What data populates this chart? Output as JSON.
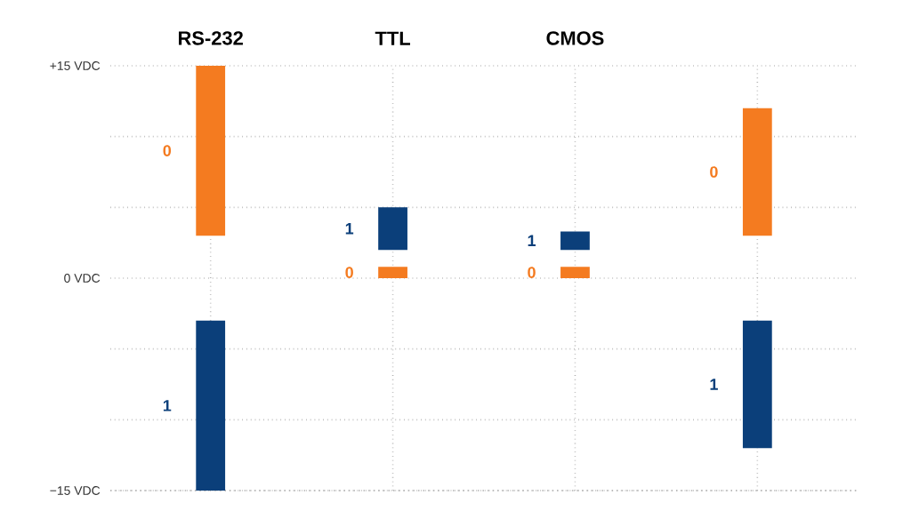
{
  "chart_data": {
    "type": "bar",
    "categories": [
      "RS-232",
      "TTL",
      "CMOS",
      null
    ],
    "series": [
      {
        "name": "0",
        "color": "#f47b20",
        "base": [
          3,
          0,
          0,
          3
        ],
        "values": [
          12,
          0.8,
          0.8,
          9
        ]
      },
      {
        "name": "1",
        "color": "#0b3f7a",
        "base": [
          -15,
          2,
          2,
          -12
        ],
        "values": [
          12,
          3,
          1.3,
          9
        ]
      }
    ],
    "ylim": [
      -15,
      15
    ],
    "yticks": [
      {
        "value": -15,
        "label": "−15 VDC"
      },
      {
        "value": -10,
        "label": null
      },
      {
        "value": -5,
        "label": null
      },
      {
        "value": 0,
        "label": "0 VDC"
      },
      {
        "value": 5,
        "label": null
      },
      {
        "value": 10,
        "label": null
      },
      {
        "value": 15,
        "label": "+15 VDC"
      }
    ],
    "grid": true
  }
}
